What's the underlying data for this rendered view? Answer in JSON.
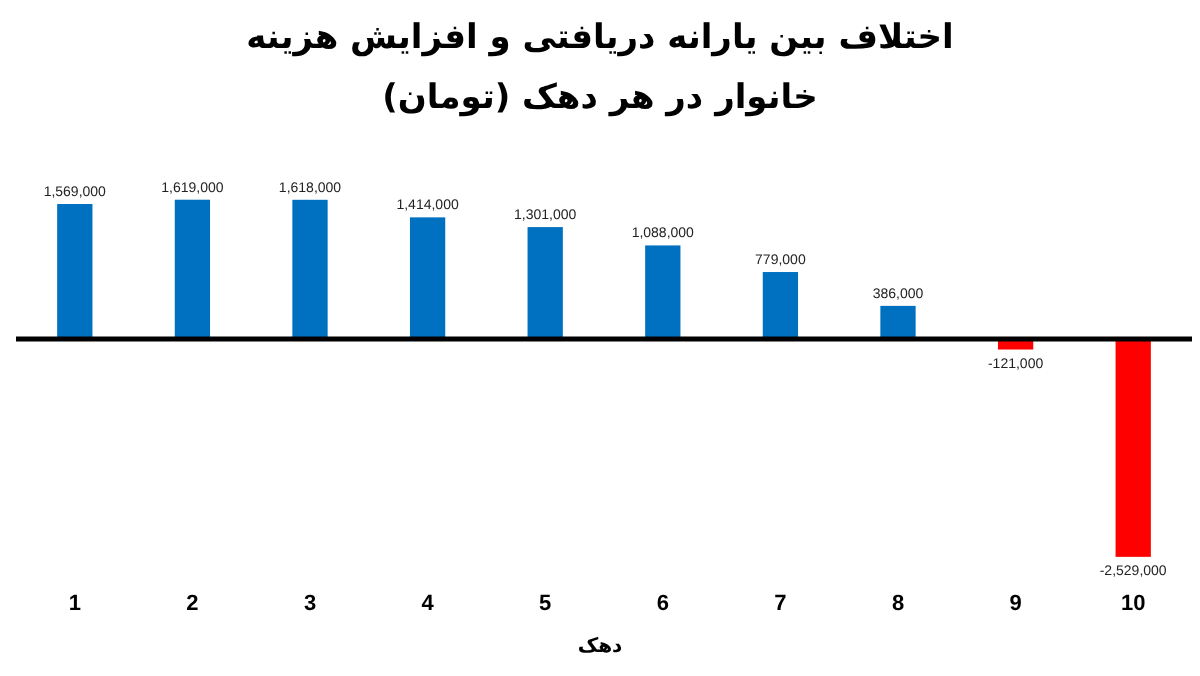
{
  "chart_data": {
    "type": "bar",
    "title": "اختلاف بین یارانه دریافتی و افزایش هزینه خانوار در هر دهک (تومان)",
    "xlabel": "دهک",
    "categories": [
      "1",
      "2",
      "3",
      "4",
      "5",
      "6",
      "7",
      "8",
      "9",
      "10"
    ],
    "values": [
      1569000,
      1619000,
      1618000,
      1414000,
      1301000,
      1088000,
      779000,
      386000,
      -121000,
      -2529000
    ],
    "value_labels": [
      "1,569,000",
      "1,619,000",
      "1,618,000",
      "1,414,000",
      "1,301,000",
      "1,088,000",
      "779,000",
      "386,000",
      "-121,000",
      "-2,529,000"
    ],
    "colors": [
      "#0070c0",
      "#0070c0",
      "#0070c0",
      "#0070c0",
      "#0070c0",
      "#0070c0",
      "#0070c0",
      "#0070c0",
      "#ff0000",
      "#ff0000"
    ]
  }
}
